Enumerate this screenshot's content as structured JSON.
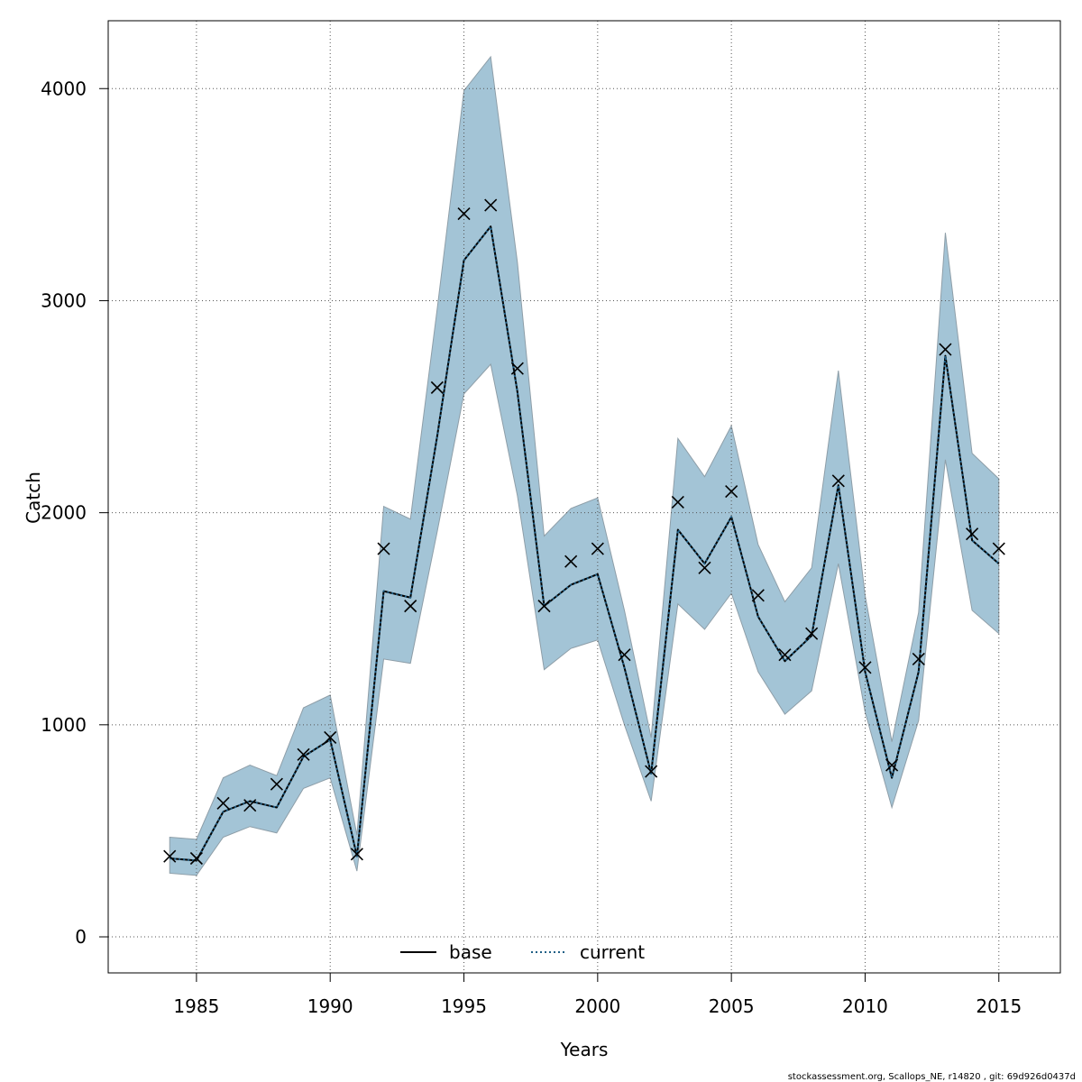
{
  "chart_data": {
    "type": "line",
    "title": "",
    "xlabel": "Years",
    "ylabel": "Catch",
    "xlim": [
      1981.7,
      2017.3
    ],
    "ylim": [
      -170,
      4320
    ],
    "x_ticks": [
      1985,
      1990,
      1995,
      2000,
      2005,
      2010,
      2015
    ],
    "y_ticks": [
      0,
      1000,
      2000,
      3000,
      4000
    ],
    "grid": true,
    "legend_position": "bottom-center",
    "colors": {
      "band": "#a3c4d6",
      "band_edge": "#8e9ea8",
      "current_line": "#1f5f86",
      "base_line": "#000000",
      "observed_marker": "#000000",
      "grid": "#555555"
    },
    "x": [
      1984,
      1985,
      1986,
      1987,
      1988,
      1989,
      1990,
      1991,
      1992,
      1993,
      1994,
      1995,
      1996,
      1997,
      1998,
      1999,
      2000,
      2001,
      2002,
      2003,
      2004,
      2005,
      2006,
      2007,
      2008,
      2009,
      2010,
      2011,
      2012,
      2013,
      2014,
      2015
    ],
    "series": [
      {
        "name": "base",
        "style": "solid",
        "values": [
          370,
          360,
          590,
          640,
          610,
          850,
          930,
          380,
          1630,
          1600,
          2360,
          3190,
          3350,
          2570,
          1560,
          1660,
          1710,
          1270,
          770,
          1920,
          1760,
          1980,
          1510,
          1300,
          1420,
          2130,
          1250,
          750,
          1250,
          2740,
          1870,
          1760
        ]
      },
      {
        "name": "current",
        "style": "dotted",
        "values": [
          370,
          360,
          590,
          640,
          610,
          850,
          930,
          380,
          1630,
          1600,
          2360,
          3190,
          3350,
          2570,
          1560,
          1660,
          1710,
          1270,
          770,
          1920,
          1760,
          1980,
          1510,
          1300,
          1420,
          2130,
          1250,
          750,
          1250,
          2740,
          1870,
          1760
        ]
      }
    ],
    "band": {
      "lower": [
        300,
        290,
        470,
        520,
        490,
        700,
        750,
        310,
        1310,
        1290,
        1910,
        2560,
        2700,
        2080,
        1260,
        1360,
        1400,
        1000,
        640,
        1570,
        1450,
        1620,
        1250,
        1050,
        1160,
        1760,
        1060,
        610,
        1020,
        2250,
        1540,
        1430
      ],
      "upper": [
        470,
        460,
        750,
        810,
        760,
        1080,
        1140,
        480,
        2030,
        1970,
        2960,
        3990,
        4150,
        3180,
        1890,
        2020,
        2070,
        1540,
        940,
        2350,
        2170,
        2410,
        1850,
        1580,
        1740,
        2670,
        1610,
        920,
        1530,
        3320,
        2280,
        2160
      ]
    },
    "observed": [
      380,
      370,
      630,
      620,
      720,
      860,
      940,
      390,
      1830,
      1560,
      2590,
      3410,
      3450,
      2680,
      1560,
      1770,
      1830,
      1330,
      780,
      2050,
      1740,
      2100,
      1610,
      1330,
      1430,
      2150,
      1270,
      810,
      1310,
      2770,
      1900,
      1830
    ]
  },
  "footer": {
    "credit": "stockassessment.org, Scallops_NE, r14820 , git: 69d926d0437d"
  }
}
